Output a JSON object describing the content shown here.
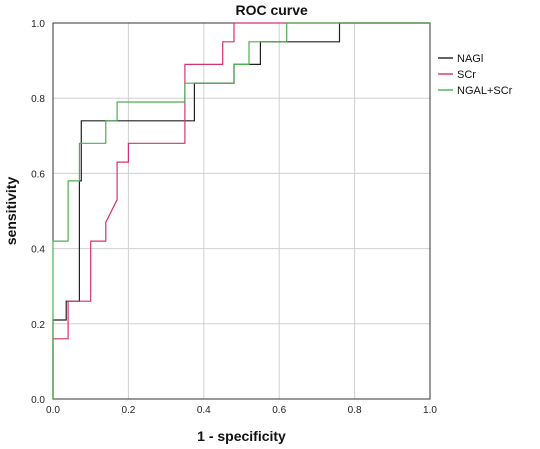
{
  "chart_data": {
    "type": "line",
    "title": "ROC curve",
    "xlabel": "1 - specificity",
    "ylabel": "sensitivity",
    "xlim": [
      0,
      1
    ],
    "ylim": [
      0,
      1
    ],
    "x_ticks": [
      "0.0",
      "0.2",
      "0.4",
      "0.6",
      "0.8",
      "1.0"
    ],
    "y_ticks": [
      "0.0",
      "0.2",
      "0.4",
      "0.6",
      "0.8",
      "1.0"
    ],
    "grid": true,
    "legend_position": "right",
    "colors": {
      "NAGl": "#222222",
      "SCr": "#d6336c",
      "NGAL+SCr": "#4caf50"
    },
    "series": [
      {
        "name": "NAGl",
        "x": [
          0,
          0,
          0.035,
          0.035,
          0.07,
          0.07,
          0.075,
          0.075,
          0.375,
          0.375,
          0.38,
          0.38,
          0.48,
          0.48,
          0.52,
          0.52,
          0.55,
          0.55,
          0.62,
          0.62,
          0.76,
          0.76,
          1.0
        ],
        "y": [
          0,
          0.21,
          0.21,
          0.26,
          0.26,
          0.58,
          0.58,
          0.74,
          0.74,
          0.84,
          0.84,
          0.84,
          0.84,
          0.89,
          0.89,
          0.89,
          0.89,
          0.95,
          0.95,
          0.95,
          0.95,
          1.0,
          1.0
        ]
      },
      {
        "name": "SCr",
        "x": [
          0,
          0,
          0.04,
          0.04,
          0.1,
          0.1,
          0.14,
          0.14,
          0.17,
          0.17,
          0.2,
          0.2,
          0.35,
          0.35,
          0.42,
          0.42,
          0.45,
          0.45,
          0.48,
          0.48,
          1.0
        ],
        "y": [
          0,
          0.16,
          0.16,
          0.26,
          0.26,
          0.42,
          0.42,
          0.47,
          0.53,
          0.63,
          0.63,
          0.68,
          0.68,
          0.89,
          0.89,
          0.89,
          0.89,
          0.95,
          0.95,
          1.0,
          1.0
        ]
      },
      {
        "name": "NGAL+SCr",
        "x": [
          0,
          0,
          0.04,
          0.04,
          0.07,
          0.07,
          0.14,
          0.14,
          0.17,
          0.17,
          0.35,
          0.35,
          0.48,
          0.48,
          0.52,
          0.52,
          0.62,
          0.62,
          1.0
        ],
        "y": [
          0,
          0.42,
          0.42,
          0.58,
          0.58,
          0.68,
          0.68,
          0.74,
          0.74,
          0.79,
          0.79,
          0.84,
          0.84,
          0.89,
          0.89,
          0.95,
          0.95,
          1.0,
          1.0
        ]
      }
    ]
  }
}
